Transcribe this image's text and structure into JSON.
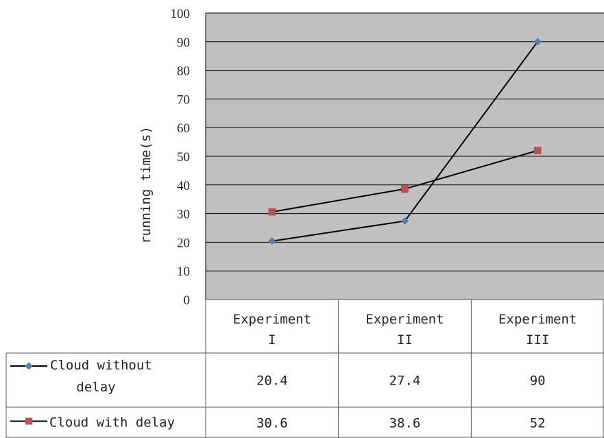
{
  "chart_data": {
    "type": "line",
    "categories": [
      [
        "Experiment",
        "I"
      ],
      [
        "Experiment",
        "II"
      ],
      [
        "Experiment",
        "III"
      ]
    ],
    "series": [
      {
        "name": [
          "Cloud without",
          "delay"
        ],
        "values": [
          20.4,
          27.4,
          90
        ],
        "labels": [
          "20.4",
          "27.4",
          "90"
        ],
        "color": "#4f81bd",
        "marker": "diamond"
      },
      {
        "name": [
          "Cloud with delay"
        ],
        "values": [
          30.6,
          38.6,
          52
        ],
        "labels": [
          "30.6",
          "38.6",
          "52"
        ],
        "color": "#c0504d",
        "marker": "square"
      }
    ],
    "ylabel": "running time(s)",
    "ylim": [
      0,
      100
    ],
    "yticks": [
      "0",
      "10",
      "20",
      "30",
      "40",
      "50",
      "60",
      "70",
      "80",
      "90",
      "100"
    ],
    "plot_background": "#c0c0c0",
    "grid": true,
    "legend": "data-table"
  }
}
